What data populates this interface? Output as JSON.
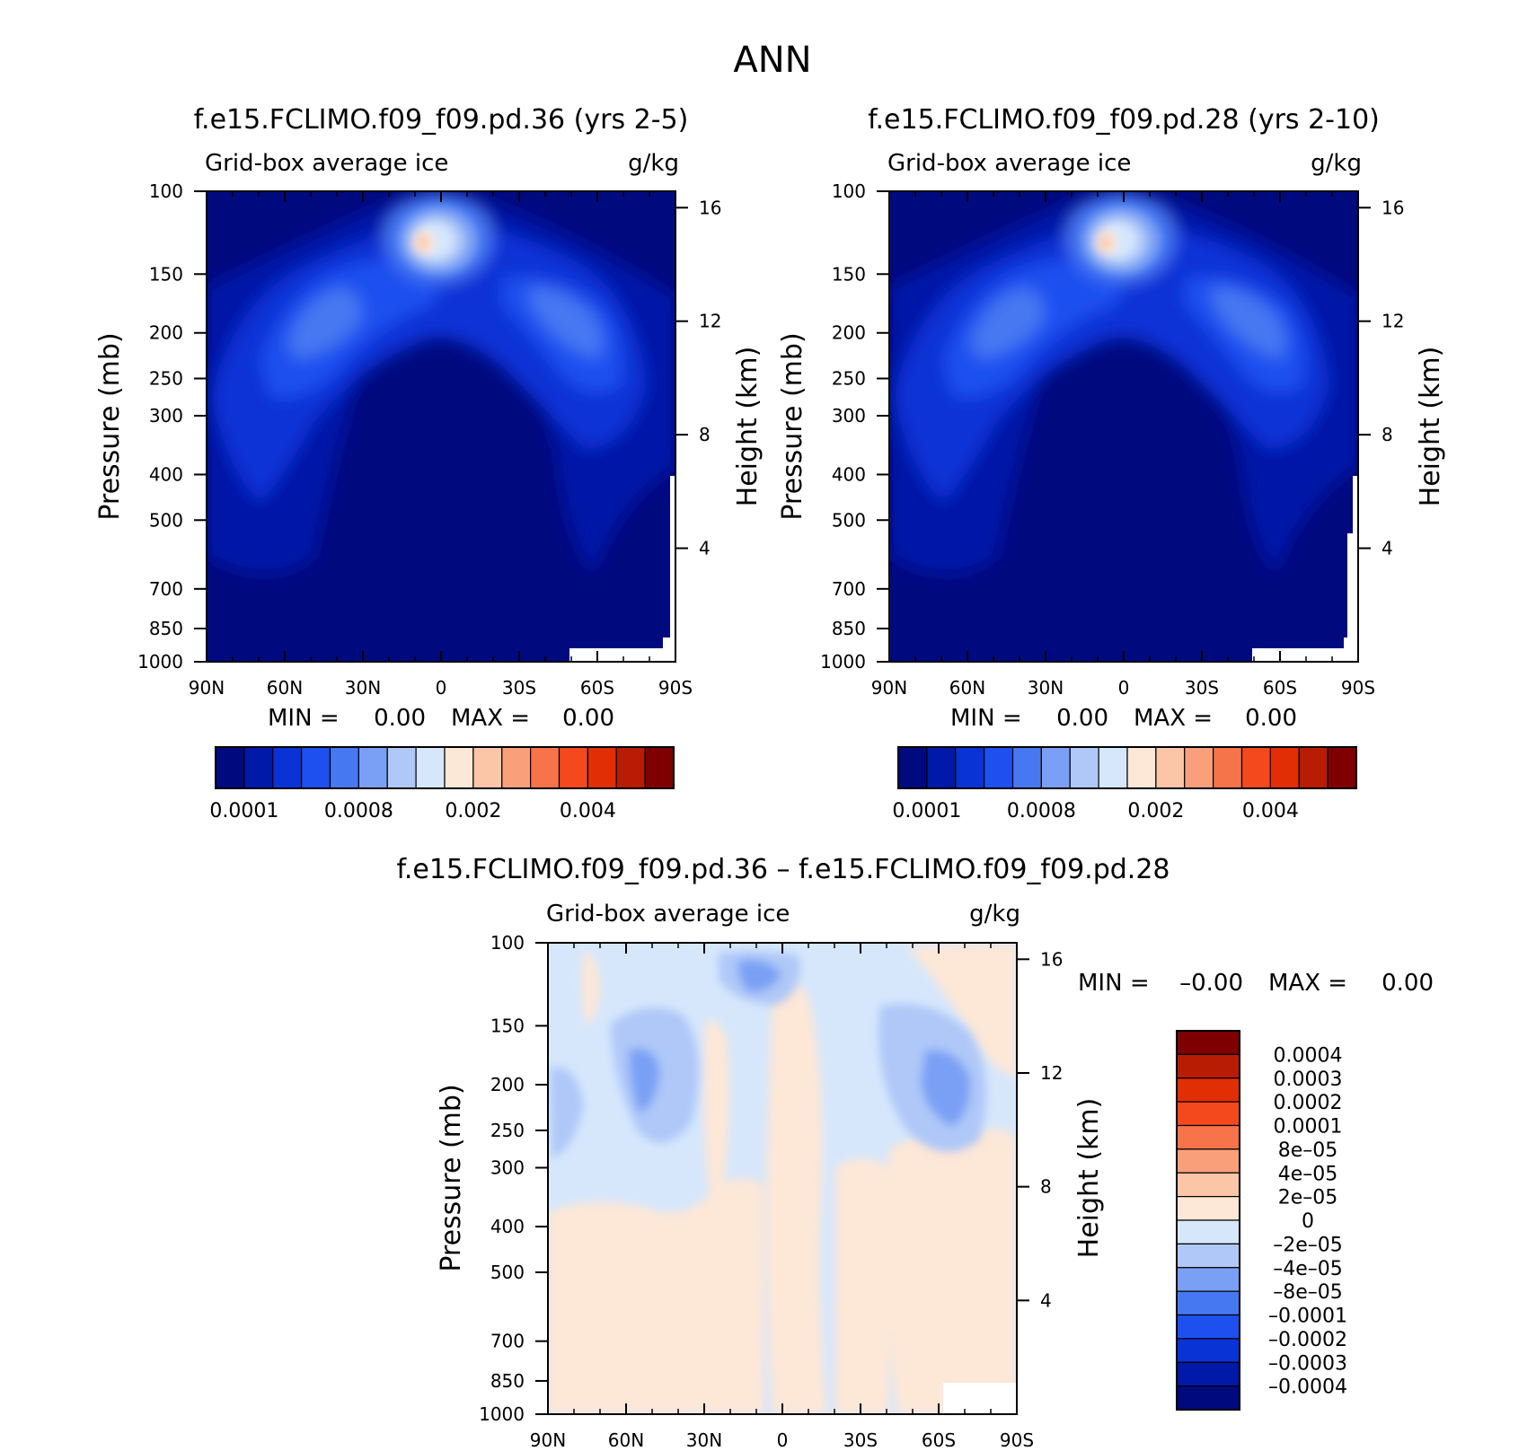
{
  "figure_title": "ANN",
  "colors": {
    "main_levels": [
      "#000a7f",
      "#0019a8",
      "#0a33d6",
      "#1e50f0",
      "#4678f2",
      "#7aa0f5",
      "#afc8f8",
      "#d6e7fc",
      "#fde7d7",
      "#fbc5a8",
      "#f9a07a",
      "#f7744a",
      "#f4491d",
      "#e12e04",
      "#b81c02",
      "#7f0000"
    ],
    "diff_levels": [
      "#000a7f",
      "#0019a8",
      "#0a33d6",
      "#1e50f0",
      "#4678f2",
      "#7aa0f5",
      "#afc8f8",
      "#d6e7fc",
      "#fde7d7",
      "#fbc5a8",
      "#f9a07a",
      "#f7744a",
      "#f4491d",
      "#e12e04",
      "#b81c02",
      "#7f0000"
    ]
  },
  "chart_data": [
    {
      "type": "heatmap",
      "title": "f.e15.FCLIMO.f09_f09.pd.36 (yrs 2-5)",
      "variable": "Grid-box average ice",
      "units": "g/kg",
      "xlabel": "",
      "ylabel": "Pressure (mb)",
      "y2label": "Height (km)",
      "x_ticks": [
        "90N",
        "60N",
        "30N",
        "0",
        "30S",
        "60S",
        "90S"
      ],
      "y_ticks": [
        100,
        150,
        200,
        250,
        300,
        400,
        500,
        700,
        850,
        1000
      ],
      "y2_ticks": [
        16,
        12,
        8,
        4
      ],
      "stats": {
        "min_label": "MIN =",
        "min_value": "0.00",
        "max_label": "MAX =",
        "max_value": "0.00"
      },
      "colorbar_labels": [
        "0.0001",
        "0.0008",
        "0.002",
        "0.004"
      ],
      "ylim": [
        1000,
        100
      ]
    },
    {
      "type": "heatmap",
      "title": "f.e15.FCLIMO.f09_f09.pd.28 (yrs 2-10)",
      "variable": "Grid-box average ice",
      "units": "g/kg",
      "xlabel": "",
      "ylabel": "Pressure (mb)",
      "y2label": "Height (km)",
      "x_ticks": [
        "90N",
        "60N",
        "30N",
        "0",
        "30S",
        "60S",
        "90S"
      ],
      "y_ticks": [
        100,
        150,
        200,
        250,
        300,
        400,
        500,
        700,
        850,
        1000
      ],
      "y2_ticks": [
        16,
        12,
        8,
        4
      ],
      "stats": {
        "min_label": "MIN =",
        "min_value": "0.00",
        "max_label": "MAX =",
        "max_value": "0.00"
      },
      "colorbar_labels": [
        "0.0001",
        "0.0008",
        "0.002",
        "0.004"
      ],
      "ylim": [
        1000,
        100
      ]
    },
    {
      "type": "heatmap",
      "title": "f.e15.FCLIMO.f09_f09.pd.36 – f.e15.FCLIMO.f09_f09.pd.28",
      "variable": "Grid-box average ice",
      "units": "g/kg",
      "xlabel": "",
      "ylabel": "Pressure (mb)",
      "y2label": "Height (km)",
      "x_ticks": [
        "90N",
        "60N",
        "30N",
        "0",
        "30S",
        "60S",
        "90S"
      ],
      "y_ticks": [
        100,
        150,
        200,
        250,
        300,
        400,
        500,
        700,
        850,
        1000
      ],
      "y2_ticks": [
        16,
        12,
        8,
        4
      ],
      "stats": {
        "min_label": "MIN =",
        "min_value": "–0.00",
        "max_label": "MAX =",
        "max_value": "0.00"
      },
      "colorbar_labels": [
        "0.0004",
        "0.0003",
        "0.0002",
        "0.0001",
        "8e–05",
        "4e–05",
        "2e–05",
        "0",
        "–2e–05",
        "–4e–05",
        "–8e–05",
        "–0.0001",
        "–0.0002",
        "–0.0003",
        "–0.0004"
      ],
      "ylim": [
        1000,
        100
      ]
    }
  ]
}
